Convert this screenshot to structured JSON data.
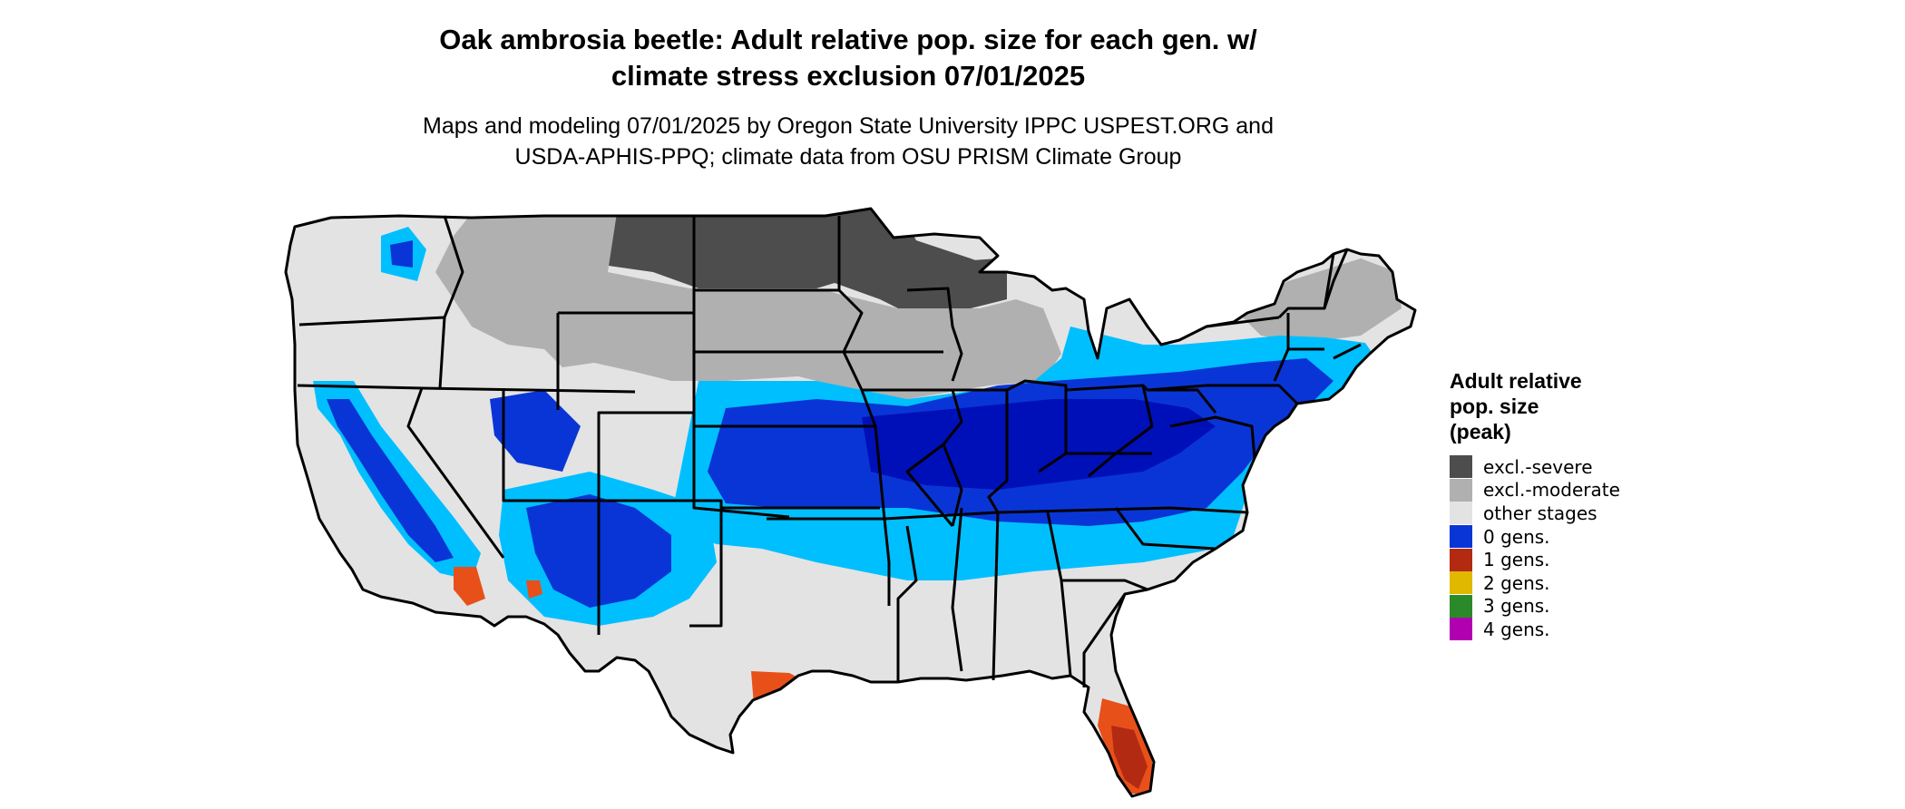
{
  "title": {
    "line1": "Oak ambrosia beetle: Adult relative pop. size for each gen. w/",
    "line2": "climate stress exclusion 07/01/2025"
  },
  "subtitle": {
    "line1": "Maps and modeling 07/01/2025 by Oregon State University IPPC USPEST.ORG and",
    "line2": "USDA-APHIS-PPQ; climate data from OSU PRISM Climate Group"
  },
  "legend": {
    "title_lines": [
      "Adult relative",
      "pop. size",
      "(peak)"
    ],
    "items": [
      {
        "label": "excl.-severe",
        "color": "#4d4d4d"
      },
      {
        "label": "excl.-moderate",
        "color": "#b0b0b0"
      },
      {
        "label": "other stages",
        "color": "#e3e3e3"
      },
      {
        "label": "0 gens.",
        "color": "#0a35d6"
      },
      {
        "label": "1 gens.",
        "color": "#b32a12"
      },
      {
        "label": "2 gens.",
        "color": "#e0b800"
      },
      {
        "label": "3 gens.",
        "color": "#2a8a2a"
      },
      {
        "label": "4 gens.",
        "color": "#b000b0"
      }
    ]
  },
  "map_colors": {
    "light_blue": "#00bfff",
    "blue": "#0a35d6",
    "dark_blue": "#0010b8",
    "orange": "#e8501a",
    "dark_red": "#b32a12"
  }
}
